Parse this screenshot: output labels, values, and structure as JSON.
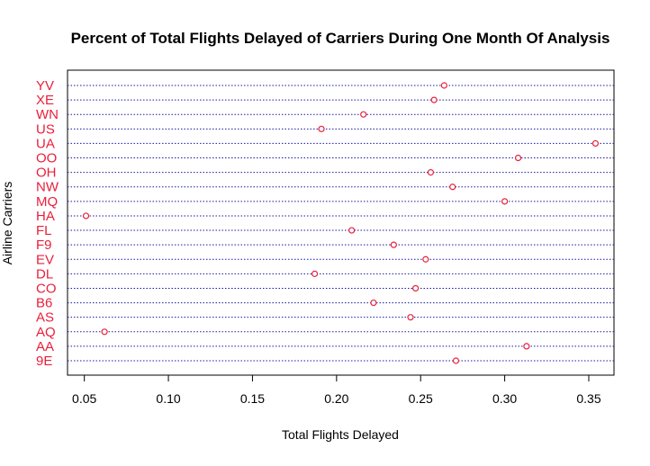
{
  "chart_data": {
    "type": "scatter",
    "subtype": "dot-chart",
    "title": "Percent of Total Flights Delayed of Carriers During One Month Of Analysis",
    "xlabel": "Total Flights Delayed",
    "ylabel": "Airline Carriers",
    "xlim": [
      0.04,
      0.365
    ],
    "xticks": [
      "0.05",
      "0.10",
      "0.15",
      "0.20",
      "0.25",
      "0.30",
      "0.35"
    ],
    "xtick_values": [
      0.05,
      0.1,
      0.15,
      0.2,
      0.25,
      0.3,
      0.35
    ],
    "categories": [
      "9E",
      "AA",
      "AQ",
      "AS",
      "B6",
      "CO",
      "DL",
      "EV",
      "F9",
      "FL",
      "HA",
      "MQ",
      "NW",
      "OH",
      "OO",
      "UA",
      "US",
      "WN",
      "XE",
      "YV"
    ],
    "values": [
      0.271,
      0.313,
      0.062,
      0.244,
      0.222,
      0.247,
      0.187,
      0.253,
      0.234,
      0.209,
      0.051,
      0.3,
      0.269,
      0.256,
      0.308,
      0.354,
      0.191,
      0.216,
      0.258,
      0.264
    ],
    "grid": "horizontal dotted lines per category",
    "colors": {
      "point": "#e8203c",
      "category_label": "#e8203c",
      "gridline": "#1a1aa0",
      "axis": "#000000"
    }
  }
}
